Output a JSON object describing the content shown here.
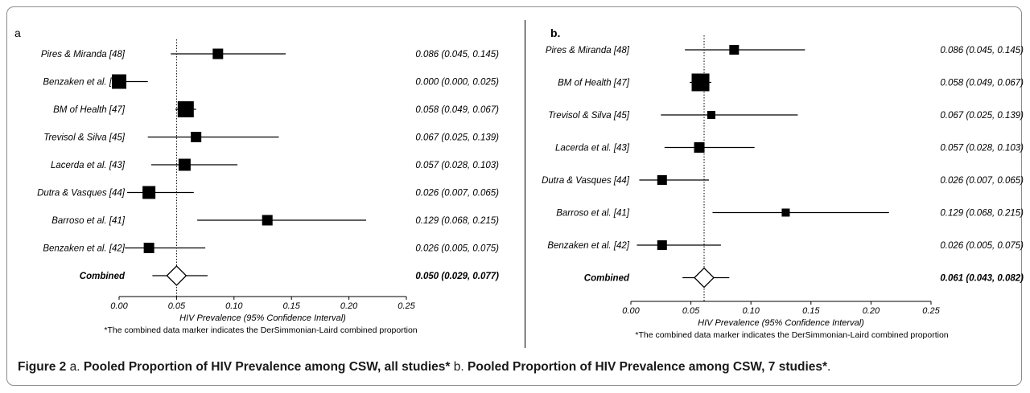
{
  "caption": {
    "label": "Figure 2",
    "text_a": " a. ",
    "bold_a": "Pooled Proportion of HIV Prevalence among CSW, all studies*",
    "text_b": " b. ",
    "bold_b": "Pooled Proportion of HIV Prevalence among CSW, 7 studies*",
    "end": "."
  },
  "chart_data": [
    {
      "type": "forest",
      "panel_label": "a",
      "xlabel": "HIV Prevalence (95% Confidence Interval)",
      "footnote": "*The combined data marker indicates the DerSimmonian-Laird combined proportion",
      "xlim": [
        0,
        0.25
      ],
      "xticks": [
        "0.00",
        "0.05",
        "0.10",
        "0.15",
        "0.20",
        "0.25"
      ],
      "reference_line": 0.05,
      "studies": [
        {
          "label": "Pires & Miranda [48]",
          "estimate": 0.086,
          "lower": 0.045,
          "upper": 0.145,
          "ci_text": "0.086 (0.045, 0.145)"
        },
        {
          "label": "Benzaken et al. [42]",
          "estimate": 0.0,
          "lower": 0.0,
          "upper": 0.025,
          "ci_text": "0.000 (0.000, 0.025)"
        },
        {
          "label": "BM of Health [47]",
          "estimate": 0.058,
          "lower": 0.049,
          "upper": 0.067,
          "ci_text": "0.058 (0.049, 0.067)"
        },
        {
          "label": "Trevisol & Silva [45]",
          "estimate": 0.067,
          "lower": 0.025,
          "upper": 0.139,
          "ci_text": "0.067 (0.025, 0.139)"
        },
        {
          "label": "Lacerda et al. [43]",
          "estimate": 0.057,
          "lower": 0.028,
          "upper": 0.103,
          "ci_text": "0.057 (0.028, 0.103)"
        },
        {
          "label": "Dutra & Vasques [44]",
          "estimate": 0.026,
          "lower": 0.007,
          "upper": 0.065,
          "ci_text": "0.026 (0.007, 0.065)"
        },
        {
          "label": "Barroso et al. [41]",
          "estimate": 0.129,
          "lower": 0.068,
          "upper": 0.215,
          "ci_text": "0.129 (0.068, 0.215)"
        },
        {
          "label": "Benzaken et al. [42]",
          "estimate": 0.026,
          "lower": 0.005,
          "upper": 0.075,
          "ci_text": "0.026 (0.005, 0.075)"
        }
      ],
      "combined": {
        "label": "Combined",
        "estimate": 0.05,
        "lower": 0.029,
        "upper": 0.077,
        "ci_text": "0.050 (0.029, 0.077)"
      }
    },
    {
      "type": "forest",
      "panel_label": "b.",
      "xlabel": "HIV Prevalence (95% Confidence Interval)",
      "footnote": "*The combined data marker indicates the DerSimmonian-Laird combined proportion",
      "xlim": [
        0,
        0.25
      ],
      "xticks": [
        "0.00",
        "0.05",
        "0.10",
        "0.15",
        "0.20",
        "0.25"
      ],
      "reference_line": 0.061,
      "studies": [
        {
          "label": "Pires & Miranda [48]",
          "estimate": 0.086,
          "lower": 0.045,
          "upper": 0.145,
          "ci_text": "0.086 (0.045, 0.145)"
        },
        {
          "label": "BM of Health [47]",
          "estimate": 0.058,
          "lower": 0.049,
          "upper": 0.067,
          "ci_text": "0.058 (0.049, 0.067)"
        },
        {
          "label": "Trevisol & Silva [45]",
          "estimate": 0.067,
          "lower": 0.025,
          "upper": 0.139,
          "ci_text": "0.067 (0.025, 0.139)"
        },
        {
          "label": "Lacerda et al. [43]",
          "estimate": 0.057,
          "lower": 0.028,
          "upper": 0.103,
          "ci_text": "0.057 (0.028, 0.103)"
        },
        {
          "label": "Dutra & Vasques [44]",
          "estimate": 0.026,
          "lower": 0.007,
          "upper": 0.065,
          "ci_text": "0.026 (0.007, 0.065)"
        },
        {
          "label": "Barroso et al. [41]",
          "estimate": 0.129,
          "lower": 0.068,
          "upper": 0.215,
          "ci_text": "0.129 (0.068, 0.215)"
        },
        {
          "label": "Benzaken et al. [42]",
          "estimate": 0.026,
          "lower": 0.005,
          "upper": 0.075,
          "ci_text": "0.026 (0.005, 0.075)"
        }
      ],
      "combined": {
        "label": "Combined",
        "estimate": 0.061,
        "lower": 0.043,
        "upper": 0.082,
        "ci_text": "0.061 (0.043, 0.082)"
      }
    }
  ]
}
